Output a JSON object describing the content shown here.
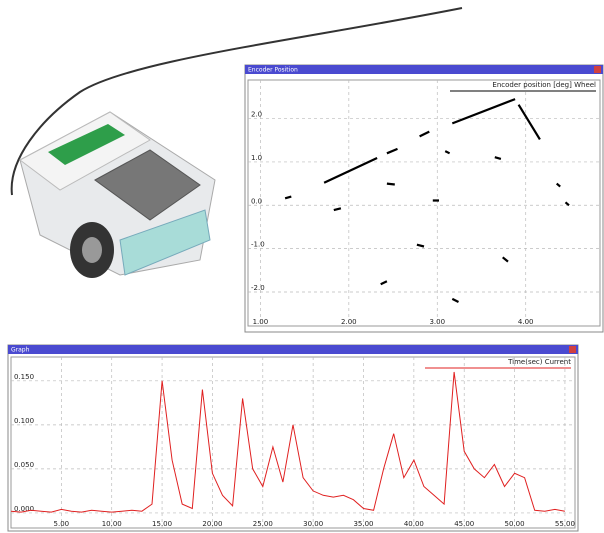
{
  "chart_data": [
    {
      "type": "line",
      "title": "Encoder Position",
      "x": [
        1.28,
        1.35,
        null,
        1.83,
        1.91,
        null,
        1.72,
        2.32,
        null,
        2.43,
        2.55,
        null,
        2.43,
        2.52,
        null,
        2.8,
        2.91,
        null,
        2.95,
        3.02,
        null,
        3.09,
        3.14,
        null,
        3.17,
        3.88,
        null,
        3.92,
        4.16,
        null,
        3.65,
        3.72,
        null,
        2.77,
        2.85,
        null,
        2.36,
        2.43,
        null,
        3.17,
        3.24,
        null,
        3.74,
        3.8,
        null,
        4.35,
        4.39,
        null,
        4.45,
        4.49
      ],
      "series": [
        {
          "name": "Encoder position [deg] Wheel",
          "color": "#000000",
          "values": [
            0.16,
            0.2,
            null,
            -0.11,
            -0.07,
            null,
            0.52,
            1.09,
            null,
            1.2,
            1.3,
            null,
            0.5,
            0.48,
            null,
            1.59,
            1.7,
            null,
            0.11,
            0.11,
            null,
            1.25,
            1.2,
            null,
            1.89,
            2.45,
            null,
            2.32,
            1.52,
            null,
            1.11,
            1.07,
            null,
            -0.91,
            -0.95,
            null,
            -1.82,
            -1.75,
            null,
            -2.16,
            -2.23,
            null,
            -1.2,
            -1.3,
            null,
            0.5,
            0.43,
            null,
            0.07,
            0.0
          ]
        }
      ],
      "xlim": [
        0.86,
        4.84
      ],
      "ylim": [
        -2.6,
        2.89
      ],
      "xticks": [
        {
          "value": 1,
          "label": "1.00"
        },
        {
          "value": 2,
          "label": "2.00"
        },
        {
          "value": 3,
          "label": "3.00"
        },
        {
          "value": 4,
          "label": "4.00"
        }
      ],
      "yticks": [
        {
          "value": 2,
          "label": "2.0"
        },
        {
          "value": 1,
          "label": "1.0"
        },
        {
          "value": 0,
          "label": "0.0"
        },
        {
          "value": -1,
          "label": "-1.0"
        },
        {
          "value": -2,
          "label": "-2.0"
        }
      ],
      "grid": true,
      "legend": "upper right"
    },
    {
      "type": "line",
      "title": "Graph",
      "x": [
        0,
        1,
        2,
        3,
        4,
        5,
        6,
        7,
        8,
        9,
        10,
        11,
        12,
        13,
        14,
        15,
        16,
        17,
        18,
        19,
        20,
        21,
        22,
        23,
        24,
        25,
        26,
        27,
        28,
        29,
        30,
        31,
        32,
        33,
        34,
        35,
        36,
        37,
        38,
        39,
        40,
        41,
        42,
        43,
        44,
        45,
        46,
        47,
        48,
        49,
        50,
        51,
        52,
        53,
        54,
        55
      ],
      "series": [
        {
          "name": "Time(sec) Current",
          "color": "#e02020",
          "values": [
            0.002,
            0.001,
            0.003,
            0.002,
            0.001,
            0.004,
            0.002,
            0.001,
            0.003,
            0.002,
            0.001,
            0.002,
            0.003,
            0.002,
            0.01,
            0.15,
            0.06,
            0.01,
            0.005,
            0.14,
            0.045,
            0.02,
            0.008,
            0.13,
            0.05,
            0.03,
            0.075,
            0.035,
            0.1,
            0.04,
            0.025,
            0.02,
            0.018,
            0.02,
            0.015,
            0.005,
            0.003,
            0.05,
            0.09,
            0.04,
            0.06,
            0.03,
            0.02,
            0.01,
            0.16,
            0.07,
            0.05,
            0.04,
            0.055,
            0.03,
            0.045,
            0.04,
            0.003,
            0.002,
            0.004,
            0.002
          ]
        }
      ],
      "xlim": [
        0,
        56
      ],
      "ylim": [
        -0.008,
        0.177
      ],
      "xticks": [
        {
          "value": 5,
          "label": "5.00"
        },
        {
          "value": 10,
          "label": "10.00"
        },
        {
          "value": 15,
          "label": "15.00"
        },
        {
          "value": 20,
          "label": "20.00"
        },
        {
          "value": 25,
          "label": "25.00"
        },
        {
          "value": 30,
          "label": "30.00"
        },
        {
          "value": 35,
          "label": "35.00"
        },
        {
          "value": 40,
          "label": "40.00"
        },
        {
          "value": 45,
          "label": "45.00"
        },
        {
          "value": 50,
          "label": "50.00"
        },
        {
          "value": 55,
          "label": "55.00"
        }
      ],
      "yticks": [
        {
          "value": 0.15,
          "label": "0.150"
        },
        {
          "value": 0.1,
          "label": "0.100"
        },
        {
          "value": 0.05,
          "label": "0.050"
        },
        {
          "value": 0,
          "label": "0.000"
        }
      ],
      "grid": true,
      "legend": "upper right"
    }
  ]
}
